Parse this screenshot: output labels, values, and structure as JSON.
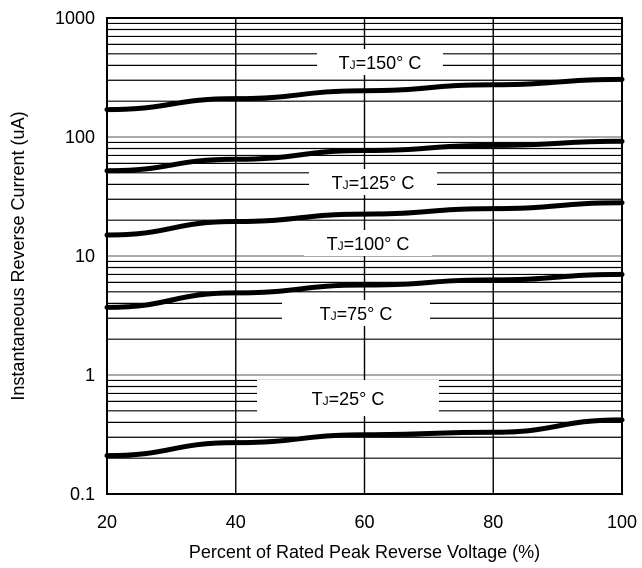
{
  "chart_data": {
    "type": "line",
    "xlabel": "Percent of Rated Peak Reverse Voltage (%)",
    "ylabel": "Instantaneous Reverse Current (uA)",
    "xlim": [
      20,
      100
    ],
    "ylim": [
      0.1,
      1000
    ],
    "y_scale": "log",
    "grid": true,
    "x_ticks": [
      "20",
      "40",
      "60",
      "80",
      "100"
    ],
    "y_ticks": [
      "0.1",
      "1",
      "10",
      "100",
      "1000"
    ],
    "series": [
      {
        "name": "TJ=150° C",
        "label_prefix": "T",
        "label_sub": "J",
        "label_rest": "=150° C",
        "x": [
          20,
          40,
          60,
          80,
          100
        ],
        "y": [
          170,
          210,
          245,
          275,
          305
        ]
      },
      {
        "name": "TJ=125° C",
        "label_prefix": "T",
        "label_sub": "J",
        "label_rest": "=125° C",
        "x": [
          20,
          40,
          60,
          80,
          100
        ],
        "y": [
          52,
          65,
          77,
          85,
          92
        ]
      },
      {
        "name": "TJ=100° C",
        "label_prefix": "T",
        "label_sub": "J",
        "label_rest": "=100° C",
        "x": [
          20,
          40,
          60,
          80,
          100
        ],
        "y": [
          15,
          19.5,
          22.5,
          25,
          28
        ]
      },
      {
        "name": "TJ=75° C",
        "label_prefix": "T",
        "label_sub": "J",
        "label_rest": "=75° C",
        "x": [
          20,
          40,
          60,
          80,
          100
        ],
        "y": [
          3.7,
          4.9,
          5.7,
          6.3,
          7.0
        ]
      },
      {
        "name": "TJ=25° C",
        "label_prefix": "T",
        "label_sub": "J",
        "label_rest": "=25° C",
        "x": [
          20,
          40,
          60,
          80,
          100
        ],
        "y": [
          0.21,
          0.27,
          0.315,
          0.33,
          0.42
        ]
      }
    ],
    "colors": {
      "line": "#000000",
      "grid_major": "#000000",
      "grid_minor": "#000000",
      "decade_line": "#aaaaaa"
    }
  }
}
